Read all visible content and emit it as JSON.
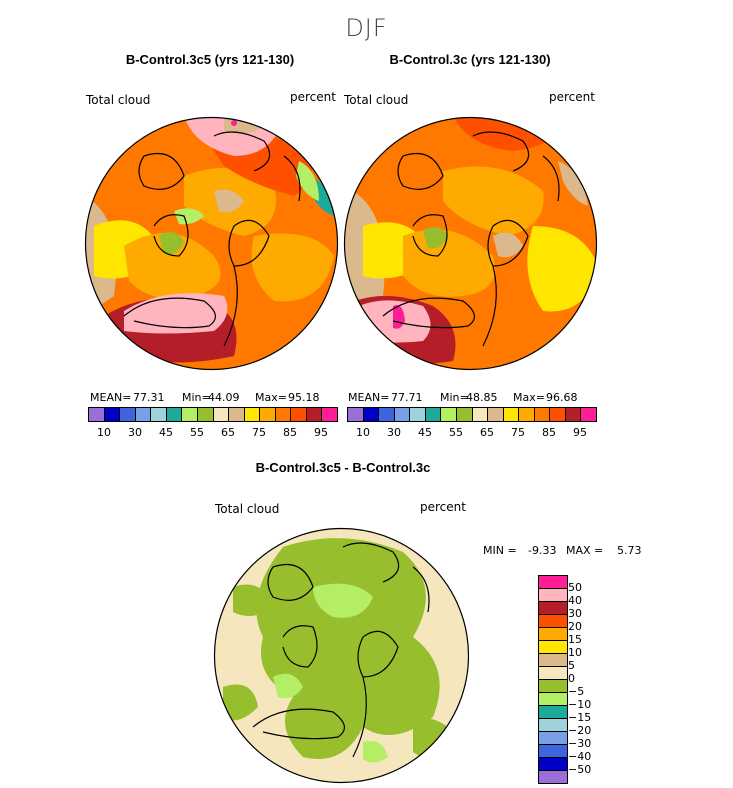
{
  "season": "DJF",
  "variable_label": "Total cloud",
  "units_label": "percent",
  "colors": {
    "level": [
      "#9b6dd6",
      "#0000c8",
      "#3c64dc",
      "#78a0e6",
      "#a0d2dc",
      "#1eaa9b",
      "#b4ee64",
      "#96be2d",
      "#f5e6be",
      "#dcb98c",
      "#ffe600",
      "#ffaa00",
      "#ff7800",
      "#ff5000",
      "#b41e28",
      "#ffb4be",
      "#ff1e96"
    ],
    "diff": [
      "#ff1e96",
      "#ffb4be",
      "#b41e28",
      "#ff5000",
      "#ffaa00",
      "#ffe600",
      "#dcb98c",
      "#f5e6be",
      "#96be2d",
      "#b4ee64",
      "#1eaa9b",
      "#a0d2dc",
      "#78a0e6",
      "#3c64dc",
      "#0000c8",
      "#9b6dd6"
    ],
    "land": "#000000"
  },
  "chart_data": [
    {
      "type": "heatmap",
      "projection": "north-polar-stereographic",
      "title": "B-Control.3c5 (yrs 121-130)",
      "variable": "Total cloud",
      "units": "percent",
      "stats": {
        "mean_label": "MEAN=",
        "mean": "77.31",
        "min_label": "Min=",
        "min": "44.09",
        "max_label": "Max=",
        "max": "95.18"
      },
      "colorbar_ticks": [
        "10",
        "30",
        "45",
        "55",
        "65",
        "75",
        "85",
        "95"
      ]
    },
    {
      "type": "heatmap",
      "projection": "north-polar-stereographic",
      "title": "B-Control.3c (yrs 121-130)",
      "variable": "Total cloud",
      "units": "percent",
      "stats": {
        "mean_label": "MEAN=",
        "mean": "77.71",
        "min_label": "Min=",
        "min": "48.85",
        "max_label": "Max=",
        "max": "96.68"
      },
      "colorbar_ticks": [
        "10",
        "30",
        "45",
        "55",
        "65",
        "75",
        "85",
        "95"
      ]
    },
    {
      "type": "heatmap",
      "projection": "north-polar-stereographic",
      "title": "B-Control.3c5 - B-Control.3c",
      "variable": "Total cloud",
      "units": "percent",
      "stats": {
        "min_label": "MIN =",
        "min": "-9.33",
        "max_label": "MAX =",
        "max": "5.73"
      },
      "colorbar_ticks": [
        "50",
        "40",
        "30",
        "20",
        "15",
        "10",
        "5",
        "0",
        "−5",
        "−10",
        "−15",
        "−20",
        "−30",
        "−40",
        "−50"
      ]
    }
  ]
}
